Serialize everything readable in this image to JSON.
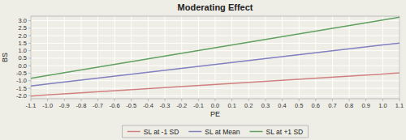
{
  "chart_data": {
    "type": "line",
    "title": "Moderating Effect",
    "x_label": "PE",
    "y_label": "BS",
    "x": [
      -1.1,
      -1.0,
      1.0,
      1.1
    ],
    "series": [
      {
        "name": "SL at -1 SD",
        "color": "#d08080",
        "values": [
          -2.02,
          -1.95,
          -0.55,
          -0.48
        ]
      },
      {
        "name": "SL at Mean",
        "color": "#8080c0",
        "values": [
          -1.35,
          -1.22,
          1.38,
          1.51
        ]
      },
      {
        "name": "SL at +1 SD",
        "color": "#60a060",
        "values": [
          -0.835,
          -0.65,
          3.05,
          3.235
        ]
      }
    ],
    "xlim": [
      -1.1,
      1.1
    ],
    "ylim": [
      -2.2,
      3.3
    ],
    "xticks": [
      -1.1,
      {
        "value": -1.0,
        "label": "-1.0"
      },
      -0.9,
      -0.8,
      -0.7,
      -0.6,
      -0.5,
      -0.4,
      -0.3,
      -0.2,
      -0.1,
      {
        "value": 0.0,
        "label": "0.0"
      },
      0.1,
      0.2,
      0.3,
      0.4,
      0.5,
      0.6,
      0.7,
      0.8,
      0.9,
      {
        "value": 1.0,
        "label": "1.0"
      },
      1.1
    ],
    "yticks": [
      {
        "value": -2.0,
        "label": "-2.0"
      },
      -1.5,
      {
        "value": -1.0,
        "label": "-1.0"
      },
      -0.5,
      {
        "value": 0.0,
        "label": "0.0"
      },
      0.5,
      {
        "value": 1.0,
        "label": "1.0"
      },
      1.5,
      {
        "value": 2.0,
        "label": "2.0"
      },
      2.5,
      {
        "value": 3.0,
        "label": "3.0"
      }
    ],
    "grid": true,
    "legend": "bottom"
  }
}
